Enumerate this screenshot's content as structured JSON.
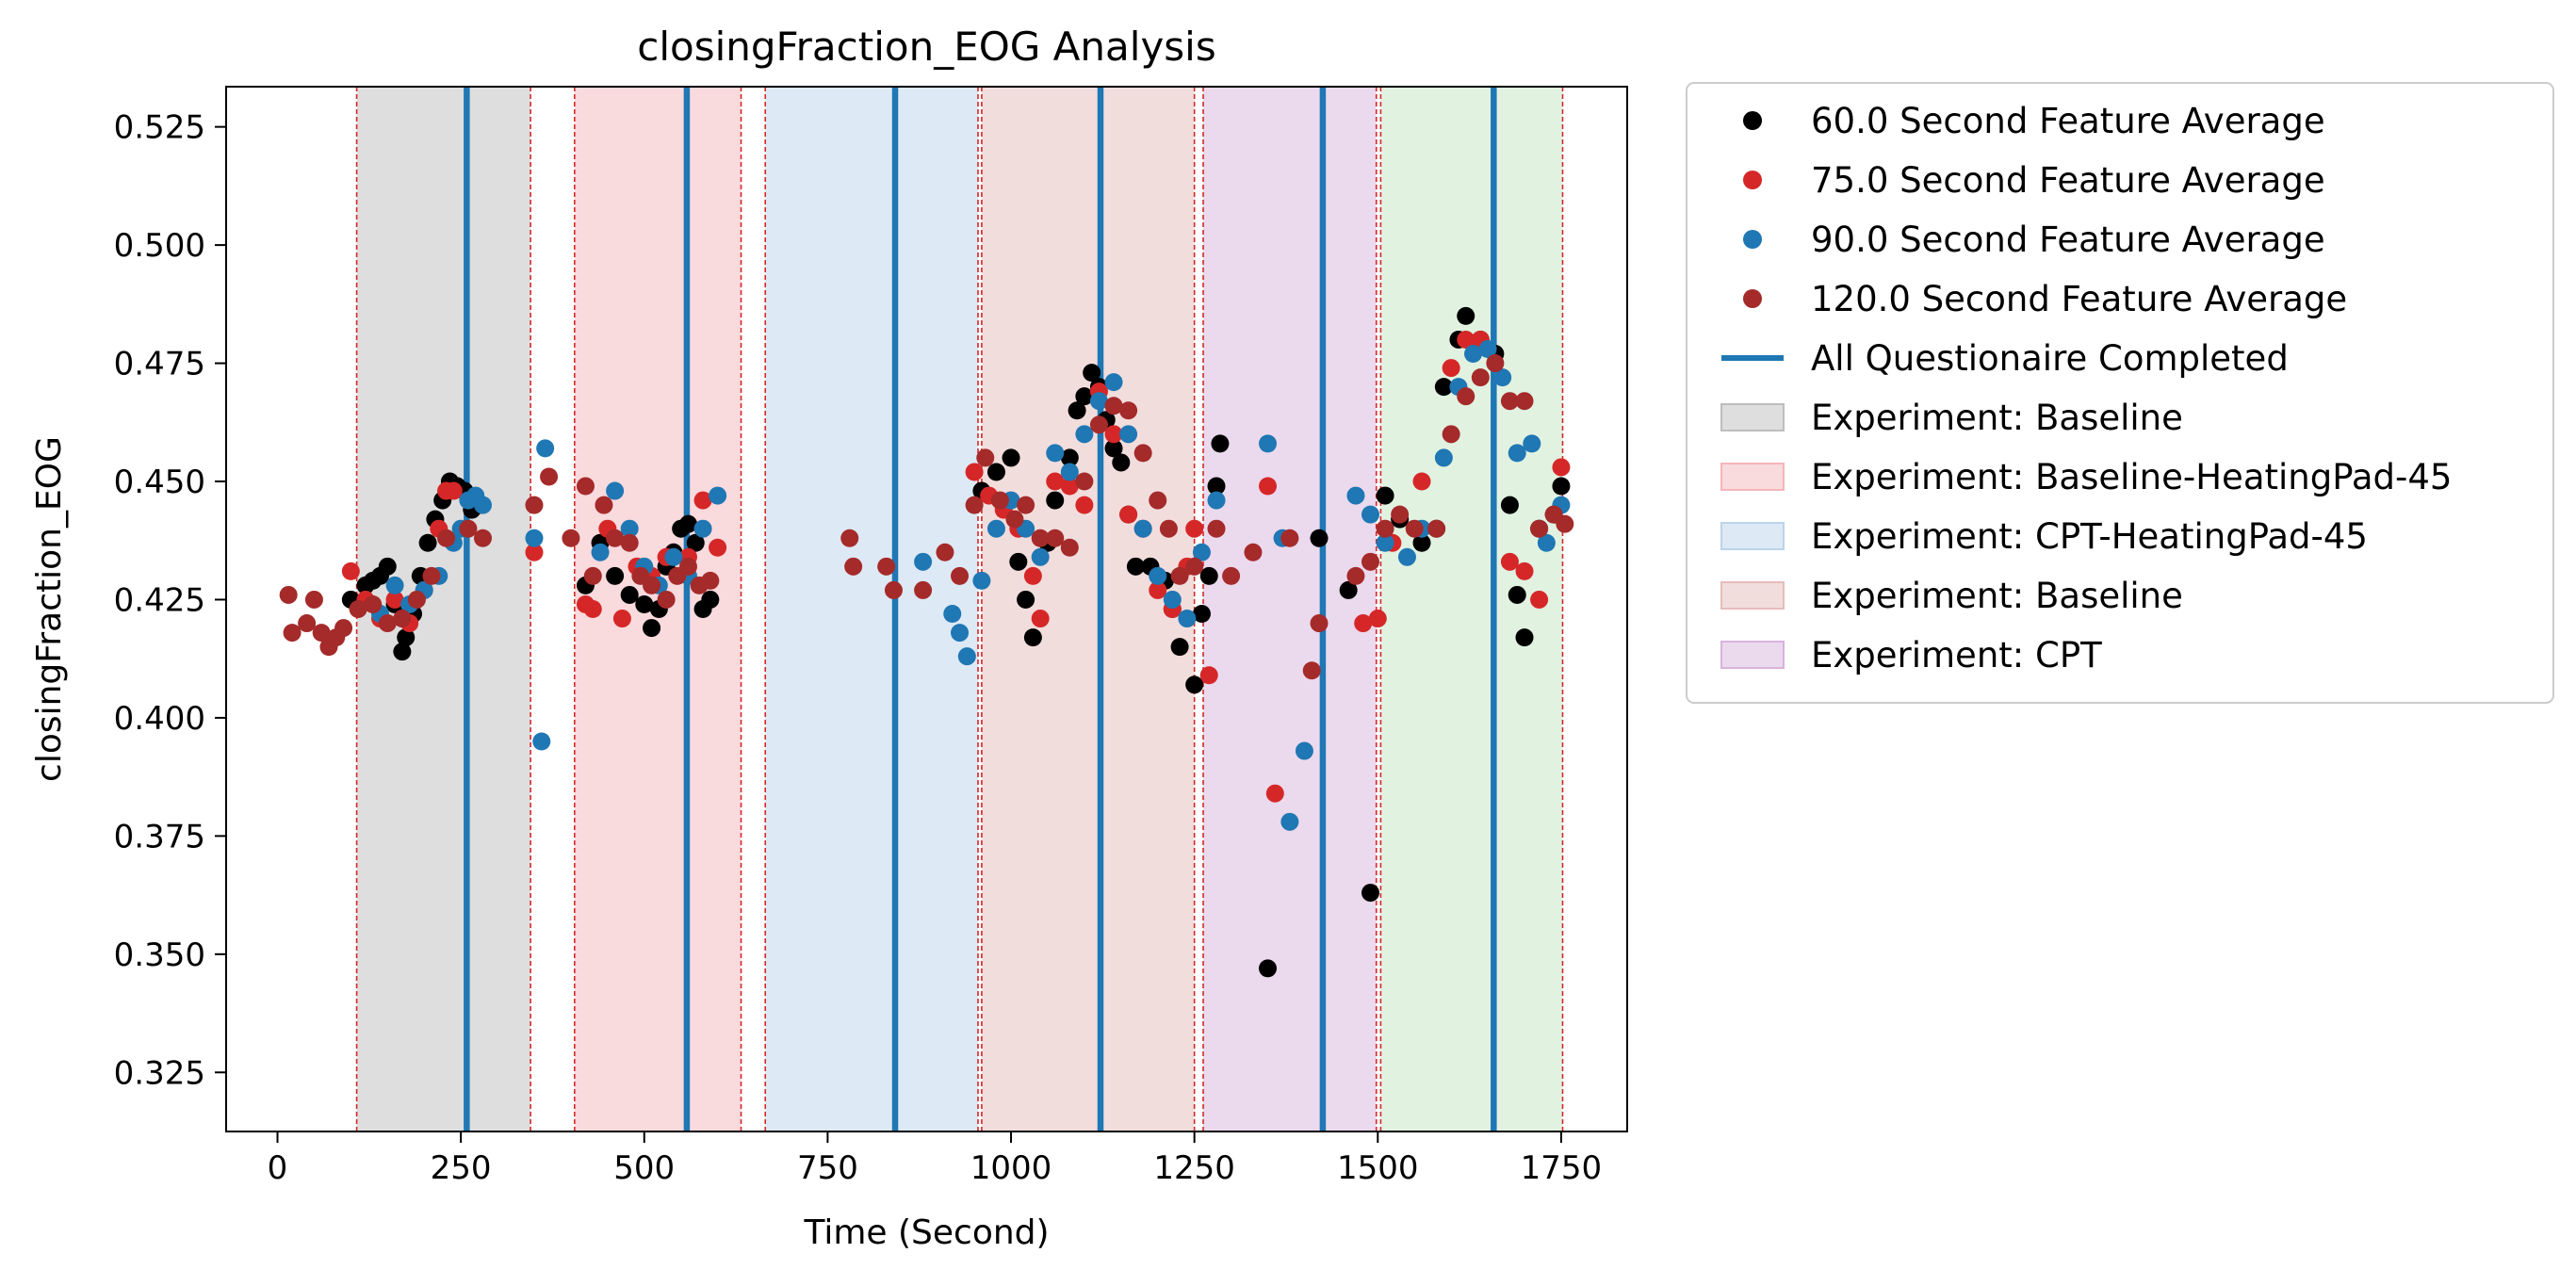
{
  "chart_data": {
    "type": "scatter",
    "title": "closingFraction_EOG Analysis",
    "xlabel": "Time (Second)",
    "ylabel": "closingFraction_EOG",
    "xlim": [
      -70,
      1840
    ],
    "ylim": [
      0.3125,
      0.5335
    ],
    "xticks": [
      0,
      250,
      500,
      750,
      1000,
      1250,
      1500,
      1750
    ],
    "xtick_labels": [
      "0",
      "250",
      "500",
      "750",
      "1000",
      "1250",
      "1500",
      "1750"
    ],
    "yticks": [
      0.325,
      0.35,
      0.375,
      0.4,
      0.425,
      0.45,
      0.475,
      0.5,
      0.525
    ],
    "ytick_labels": [
      "0.325",
      "0.350",
      "0.375",
      "0.400",
      "0.425",
      "0.450",
      "0.475",
      "0.500",
      "0.525"
    ],
    "grid": false,
    "legend_placement": "outside-upper-right",
    "phases": [
      {
        "name": "Experiment: Baseline",
        "start": 108,
        "end": 345,
        "color": "#bdbdbd"
      },
      {
        "name": "Experiment: Baseline-HeatingPad-45",
        "start": 405,
        "end": 632,
        "color": "#f4b6bb"
      },
      {
        "name": "Experiment: CPT-HeatingPad-45",
        "start": 665,
        "end": 955,
        "color": "#bcd4ea"
      },
      {
        "name": "Experiment: Baseline",
        "start": 960,
        "end": 1250,
        "color": "#e6bcbc"
      },
      {
        "name": "Experiment: CPT",
        "start": 1262,
        "end": 1498,
        "color": "#d8b3dc"
      },
      {
        "name": "",
        "start": 1504,
        "end": 1752,
        "color": "#c3e6c3"
      }
    ],
    "phase_boundaries": [
      108,
      345,
      405,
      632,
      665,
      955,
      960,
      1250,
      1262,
      1498,
      1504,
      1752
    ],
    "questionnaire_completed": [
      258,
      558,
      842,
      1122,
      1425,
      1658
    ],
    "series": [
      {
        "name": "60.0 Second Feature Average",
        "color": "#000000",
        "points": [
          [
            100,
            0.425
          ],
          [
            120,
            0.428
          ],
          [
            130,
            0.429
          ],
          [
            140,
            0.43
          ],
          [
            150,
            0.432
          ],
          [
            160,
            0.424
          ],
          [
            170,
            0.414
          ],
          [
            175,
            0.417
          ],
          [
            185,
            0.422
          ],
          [
            195,
            0.43
          ],
          [
            205,
            0.437
          ],
          [
            215,
            0.442
          ],
          [
            225,
            0.446
          ],
          [
            235,
            0.45
          ],
          [
            245,
            0.449
          ],
          [
            255,
            0.448
          ],
          [
            265,
            0.444
          ],
          [
            275,
            0.445
          ],
          [
            420,
            0.428
          ],
          [
            440,
            0.437
          ],
          [
            460,
            0.43
          ],
          [
            480,
            0.426
          ],
          [
            500,
            0.424
          ],
          [
            510,
            0.419
          ],
          [
            520,
            0.423
          ],
          [
            530,
            0.432
          ],
          [
            540,
            0.435
          ],
          [
            550,
            0.44
          ],
          [
            560,
            0.441
          ],
          [
            570,
            0.437
          ],
          [
            580,
            0.423
          ],
          [
            590,
            0.425
          ],
          [
            960,
            0.448
          ],
          [
            980,
            0.452
          ],
          [
            1000,
            0.455
          ],
          [
            1010,
            0.433
          ],
          [
            1020,
            0.425
          ],
          [
            1030,
            0.417
          ],
          [
            1050,
            0.437
          ],
          [
            1060,
            0.446
          ],
          [
            1080,
            0.455
          ],
          [
            1090,
            0.465
          ],
          [
            1100,
            0.468
          ],
          [
            1110,
            0.473
          ],
          [
            1120,
            0.47
          ],
          [
            1130,
            0.463
          ],
          [
            1140,
            0.457
          ],
          [
            1150,
            0.454
          ],
          [
            1160,
            0.443
          ],
          [
            1170,
            0.432
          ],
          [
            1190,
            0.432
          ],
          [
            1210,
            0.429
          ],
          [
            1220,
            0.423
          ],
          [
            1230,
            0.415
          ],
          [
            1250,
            0.407
          ],
          [
            1260,
            0.422
          ],
          [
            1270,
            0.43
          ],
          [
            1280,
            0.449
          ],
          [
            1285,
            0.458
          ],
          [
            1350,
            0.347
          ],
          [
            1420,
            0.438
          ],
          [
            1460,
            0.427
          ],
          [
            1490,
            0.363
          ],
          [
            1510,
            0.447
          ],
          [
            1530,
            0.442
          ],
          [
            1560,
            0.437
          ],
          [
            1580,
            0.44
          ],
          [
            1590,
            0.47
          ],
          [
            1610,
            0.48
          ],
          [
            1620,
            0.485
          ],
          [
            1640,
            0.48
          ],
          [
            1660,
            0.477
          ],
          [
            1680,
            0.445
          ],
          [
            1690,
            0.426
          ],
          [
            1700,
            0.417
          ],
          [
            1720,
            0.44
          ],
          [
            1740,
            0.443
          ],
          [
            1750,
            0.449
          ]
        ]
      },
      {
        "name": "75.0 Second Feature Average",
        "color": "#d62728",
        "points": [
          [
            100,
            0.431
          ],
          [
            120,
            0.425
          ],
          [
            140,
            0.421
          ],
          [
            160,
            0.425
          ],
          [
            180,
            0.42
          ],
          [
            200,
            0.427
          ],
          [
            220,
            0.44
          ],
          [
            230,
            0.448
          ],
          [
            240,
            0.448
          ],
          [
            350,
            0.435
          ],
          [
            420,
            0.424
          ],
          [
            430,
            0.423
          ],
          [
            450,
            0.44
          ],
          [
            470,
            0.421
          ],
          [
            490,
            0.432
          ],
          [
            510,
            0.43
          ],
          [
            530,
            0.434
          ],
          [
            560,
            0.434
          ],
          [
            580,
            0.446
          ],
          [
            600,
            0.436
          ],
          [
            950,
            0.452
          ],
          [
            970,
            0.447
          ],
          [
            990,
            0.444
          ],
          [
            1010,
            0.44
          ],
          [
            1030,
            0.43
          ],
          [
            1040,
            0.421
          ],
          [
            1060,
            0.45
          ],
          [
            1080,
            0.449
          ],
          [
            1100,
            0.445
          ],
          [
            1120,
            0.469
          ],
          [
            1140,
            0.46
          ],
          [
            1160,
            0.443
          ],
          [
            1180,
            0.44
          ],
          [
            1200,
            0.427
          ],
          [
            1220,
            0.423
          ],
          [
            1240,
            0.432
          ],
          [
            1250,
            0.44
          ],
          [
            1270,
            0.409
          ],
          [
            1350,
            0.449
          ],
          [
            1360,
            0.384
          ],
          [
            1480,
            0.42
          ],
          [
            1500,
            0.421
          ],
          [
            1520,
            0.437
          ],
          [
            1560,
            0.45
          ],
          [
            1600,
            0.474
          ],
          [
            1620,
            0.48
          ],
          [
            1640,
            0.48
          ],
          [
            1680,
            0.433
          ],
          [
            1700,
            0.431
          ],
          [
            1720,
            0.425
          ],
          [
            1750,
            0.453
          ]
        ]
      },
      {
        "name": "90.0 Second Feature Average",
        "color": "#1f77b4",
        "points": [
          [
            140,
            0.422
          ],
          [
            160,
            0.428
          ],
          [
            180,
            0.424
          ],
          [
            200,
            0.427
          ],
          [
            220,
            0.43
          ],
          [
            240,
            0.437
          ],
          [
            250,
            0.44
          ],
          [
            260,
            0.446
          ],
          [
            270,
            0.447
          ],
          [
            280,
            0.445
          ],
          [
            350,
            0.438
          ],
          [
            360,
            0.395
          ],
          [
            365,
            0.457
          ],
          [
            440,
            0.435
          ],
          [
            460,
            0.448
          ],
          [
            480,
            0.44
          ],
          [
            500,
            0.432
          ],
          [
            520,
            0.428
          ],
          [
            540,
            0.434
          ],
          [
            560,
            0.43
          ],
          [
            580,
            0.44
          ],
          [
            600,
            0.447
          ],
          [
            880,
            0.433
          ],
          [
            920,
            0.422
          ],
          [
            930,
            0.418
          ],
          [
            940,
            0.413
          ],
          [
            960,
            0.429
          ],
          [
            980,
            0.44
          ],
          [
            1000,
            0.446
          ],
          [
            1020,
            0.44
          ],
          [
            1040,
            0.434
          ],
          [
            1060,
            0.456
          ],
          [
            1080,
            0.452
          ],
          [
            1100,
            0.46
          ],
          [
            1120,
            0.467
          ],
          [
            1140,
            0.471
          ],
          [
            1160,
            0.46
          ],
          [
            1180,
            0.44
          ],
          [
            1200,
            0.43
          ],
          [
            1220,
            0.425
          ],
          [
            1240,
            0.421
          ],
          [
            1260,
            0.435
          ],
          [
            1280,
            0.446
          ],
          [
            1350,
            0.458
          ],
          [
            1370,
            0.438
          ],
          [
            1380,
            0.378
          ],
          [
            1400,
            0.393
          ],
          [
            1470,
            0.447
          ],
          [
            1490,
            0.443
          ],
          [
            1510,
            0.437
          ],
          [
            1540,
            0.434
          ],
          [
            1560,
            0.44
          ],
          [
            1590,
            0.455
          ],
          [
            1610,
            0.47
          ],
          [
            1630,
            0.477
          ],
          [
            1650,
            0.478
          ],
          [
            1670,
            0.472
          ],
          [
            1690,
            0.456
          ],
          [
            1710,
            0.458
          ],
          [
            1730,
            0.437
          ],
          [
            1750,
            0.445
          ]
        ]
      },
      {
        "name": "120.0 Second Feature Average",
        "color": "#a52a2a",
        "points": [
          [
            15,
            0.426
          ],
          [
            20,
            0.418
          ],
          [
            40,
            0.42
          ],
          [
            50,
            0.425
          ],
          [
            60,
            0.418
          ],
          [
            70,
            0.415
          ],
          [
            80,
            0.417
          ],
          [
            90,
            0.419
          ],
          [
            110,
            0.423
          ],
          [
            130,
            0.424
          ],
          [
            150,
            0.42
          ],
          [
            170,
            0.421
          ],
          [
            190,
            0.425
          ],
          [
            210,
            0.43
          ],
          [
            230,
            0.438
          ],
          [
            260,
            0.44
          ],
          [
            280,
            0.438
          ],
          [
            350,
            0.445
          ],
          [
            370,
            0.451
          ],
          [
            400,
            0.438
          ],
          [
            420,
            0.449
          ],
          [
            430,
            0.43
          ],
          [
            445,
            0.445
          ],
          [
            460,
            0.438
          ],
          [
            480,
            0.437
          ],
          [
            495,
            0.43
          ],
          [
            510,
            0.428
          ],
          [
            530,
            0.425
          ],
          [
            545,
            0.43
          ],
          [
            560,
            0.432
          ],
          [
            575,
            0.428
          ],
          [
            590,
            0.429
          ],
          [
            780,
            0.438
          ],
          [
            785,
            0.432
          ],
          [
            830,
            0.432
          ],
          [
            840,
            0.427
          ],
          [
            880,
            0.427
          ],
          [
            910,
            0.435
          ],
          [
            930,
            0.43
          ],
          [
            950,
            0.445
          ],
          [
            965,
            0.455
          ],
          [
            985,
            0.446
          ],
          [
            1005,
            0.442
          ],
          [
            1020,
            0.445
          ],
          [
            1040,
            0.438
          ],
          [
            1060,
            0.438
          ],
          [
            1080,
            0.436
          ],
          [
            1100,
            0.45
          ],
          [
            1120,
            0.462
          ],
          [
            1140,
            0.466
          ],
          [
            1160,
            0.465
          ],
          [
            1180,
            0.456
          ],
          [
            1200,
            0.446
          ],
          [
            1215,
            0.44
          ],
          [
            1230,
            0.43
          ],
          [
            1250,
            0.432
          ],
          [
            1280,
            0.44
          ],
          [
            1300,
            0.43
          ],
          [
            1330,
            0.435
          ],
          [
            1380,
            0.438
          ],
          [
            1410,
            0.41
          ],
          [
            1420,
            0.42
          ],
          [
            1470,
            0.43
          ],
          [
            1490,
            0.433
          ],
          [
            1510,
            0.44
          ],
          [
            1530,
            0.443
          ],
          [
            1550,
            0.44
          ],
          [
            1580,
            0.44
          ],
          [
            1600,
            0.46
          ],
          [
            1620,
            0.468
          ],
          [
            1640,
            0.472
          ],
          [
            1660,
            0.475
          ],
          [
            1680,
            0.467
          ],
          [
            1700,
            0.467
          ],
          [
            1720,
            0.44
          ],
          [
            1740,
            0.443
          ],
          [
            1755,
            0.441
          ]
        ]
      }
    ],
    "legend": [
      {
        "type": "marker",
        "label": "60.0 Second Feature Average",
        "color": "#000000"
      },
      {
        "type": "marker",
        "label": "75.0 Second Feature Average",
        "color": "#d62728"
      },
      {
        "type": "marker",
        "label": "90.0 Second Feature Average",
        "color": "#1f77b4"
      },
      {
        "type": "marker",
        "label": "120.0 Second Feature Average",
        "color": "#a52a2a"
      },
      {
        "type": "line",
        "label": "All Questionaire Completed",
        "color": "#1f77b4"
      },
      {
        "type": "patch",
        "label": "Experiment: Baseline",
        "color": "#bdbdbd"
      },
      {
        "type": "patch",
        "label": "Experiment: Baseline-HeatingPad-45",
        "color": "#f4b6bb"
      },
      {
        "type": "patch",
        "label": "Experiment: CPT-HeatingPad-45",
        "color": "#bcd4ea"
      },
      {
        "type": "patch",
        "label": "Experiment: Baseline",
        "color": "#e6bcbc"
      },
      {
        "type": "patch",
        "label": "Experiment: CPT",
        "color": "#d8b3dc"
      }
    ]
  }
}
